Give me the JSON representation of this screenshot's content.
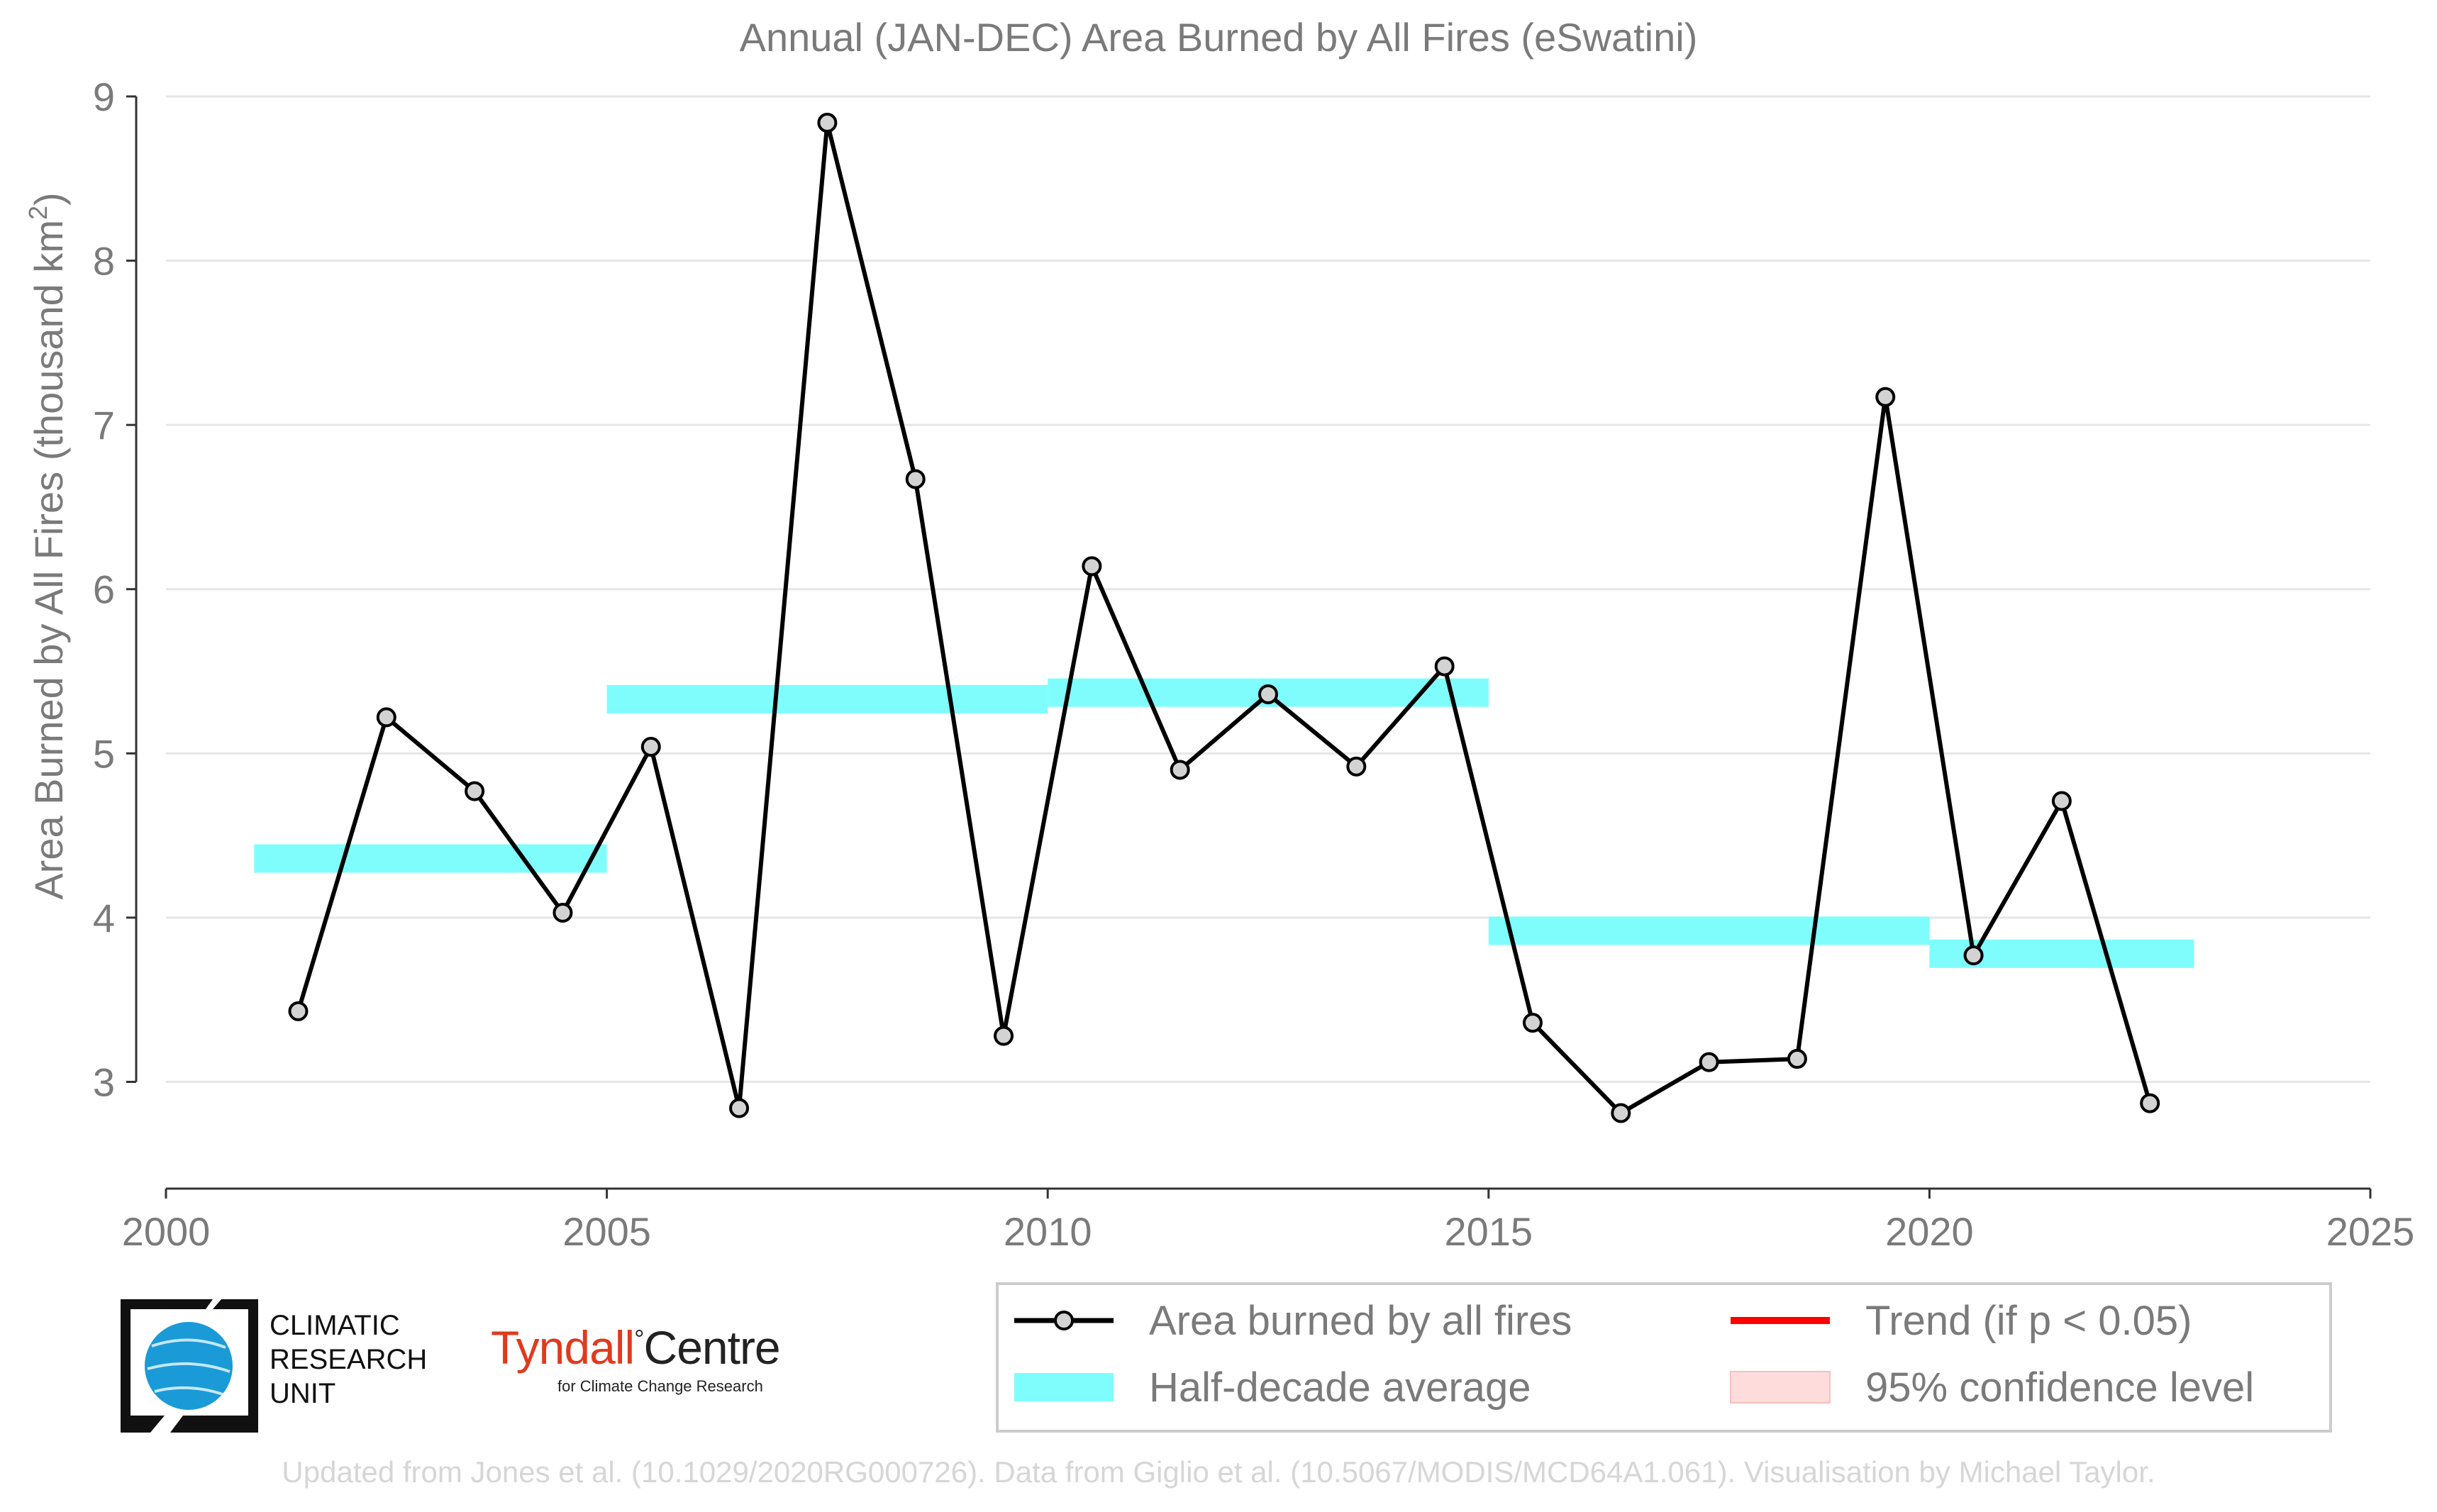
{
  "chart_data": {
    "type": "line",
    "title": "Annual (JAN-DEC) Area Burned by All Fires (eSwatini)",
    "xlabel": "",
    "ylabel": "Area Burned by All Fires (thousand km",
    "ylabel_sup": "2",
    "ylabel_close": ")",
    "xlim": [
      2000,
      2025
    ],
    "ylim": [
      2.35,
      9.0
    ],
    "x_ticks": [
      2000,
      2005,
      2010,
      2015,
      2020,
      2025
    ],
    "y_ticks": [
      3,
      4,
      5,
      6,
      7,
      8,
      9
    ],
    "grid": "horizontal",
    "series": [
      {
        "name": "Area burned by all fires",
        "color": "#000000",
        "marker_fill": "#d3d3d3",
        "x": [
          2001.5,
          2002.5,
          2003.5,
          2004.5,
          2005.5,
          2006.5,
          2007.5,
          2008.5,
          2009.5,
          2010.5,
          2011.5,
          2012.5,
          2013.5,
          2014.5,
          2015.5,
          2016.5,
          2017.5,
          2018.5,
          2019.5,
          2020.5,
          2021.5,
          2022.5
        ],
        "y": [
          3.43,
          5.22,
          4.77,
          4.03,
          5.04,
          2.84,
          8.84,
          6.67,
          3.28,
          6.14,
          4.9,
          5.36,
          4.92,
          5.53,
          3.36,
          2.81,
          3.12,
          3.14,
          7.17,
          3.77,
          4.71,
          2.87
        ]
      }
    ],
    "half_decade_average": {
      "name": "Half-decade average",
      "color": "#7ffdfd",
      "segments": [
        {
          "x0": 2001,
          "x1": 2005,
          "y": 4.36
        },
        {
          "x0": 2005,
          "x1": 2010,
          "y": 5.33
        },
        {
          "x0": 2010,
          "x1": 2015,
          "y": 5.37
        },
        {
          "x0": 2015,
          "x1": 2020,
          "y": 3.92
        },
        {
          "x0": 2020,
          "x1": 2023,
          "y": 3.78
        }
      ]
    },
    "legend": {
      "placement": "bottom-right",
      "entries": [
        {
          "key": "line",
          "label": "Area burned by all fires"
        },
        {
          "key": "trend",
          "label": "Trend (if p < 0.05)",
          "color": "#ff0000"
        },
        {
          "key": "half",
          "label": "Half-decade average"
        },
        {
          "key": "ci",
          "label": "95% confidence level",
          "color": "#ffdcdc"
        }
      ]
    }
  },
  "logos": {
    "cru": [
      "CLIMATIC",
      "RESEARCH",
      "UNIT"
    ],
    "tyndall_a": "Tyndall",
    "tyndall_deg": "°",
    "tyndall_b": "Centre",
    "tyndall_sub": "for Climate Change Research",
    "cru_blue": "#1a9bd7",
    "tyndall_red": "#e03a1e"
  },
  "footer": "Updated from Jones et al. (10.1029/2020RG000726). Data from Giglio et al. (10.5067/MODIS/MCD64A1.061). Visualisation by Michael Taylor."
}
